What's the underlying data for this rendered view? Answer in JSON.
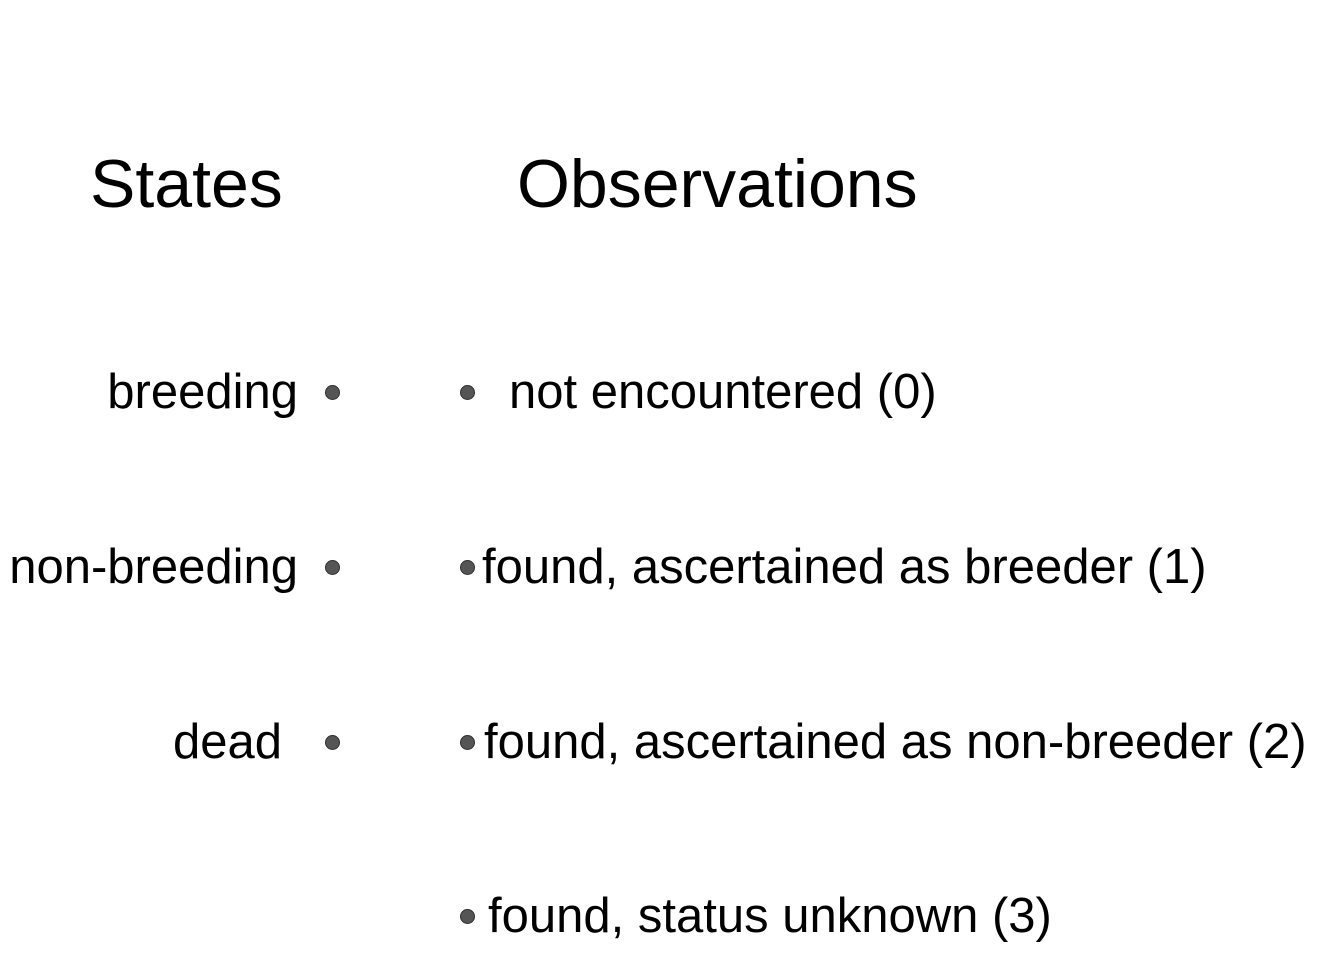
{
  "headings": {
    "states": "States",
    "observations": "Observations"
  },
  "states": [
    "breeding",
    "non-breeding",
    "dead"
  ],
  "observations": [
    "not encountered (0)",
    "found, ascertained as breeder (1)",
    "found, ascertained as non-breeder (2)",
    "found, status unknown (3)"
  ],
  "colors": {
    "text": "#000000",
    "node_fill": "#555555",
    "node_stroke": "#2f2f2f",
    "background": "#ffffff"
  }
}
